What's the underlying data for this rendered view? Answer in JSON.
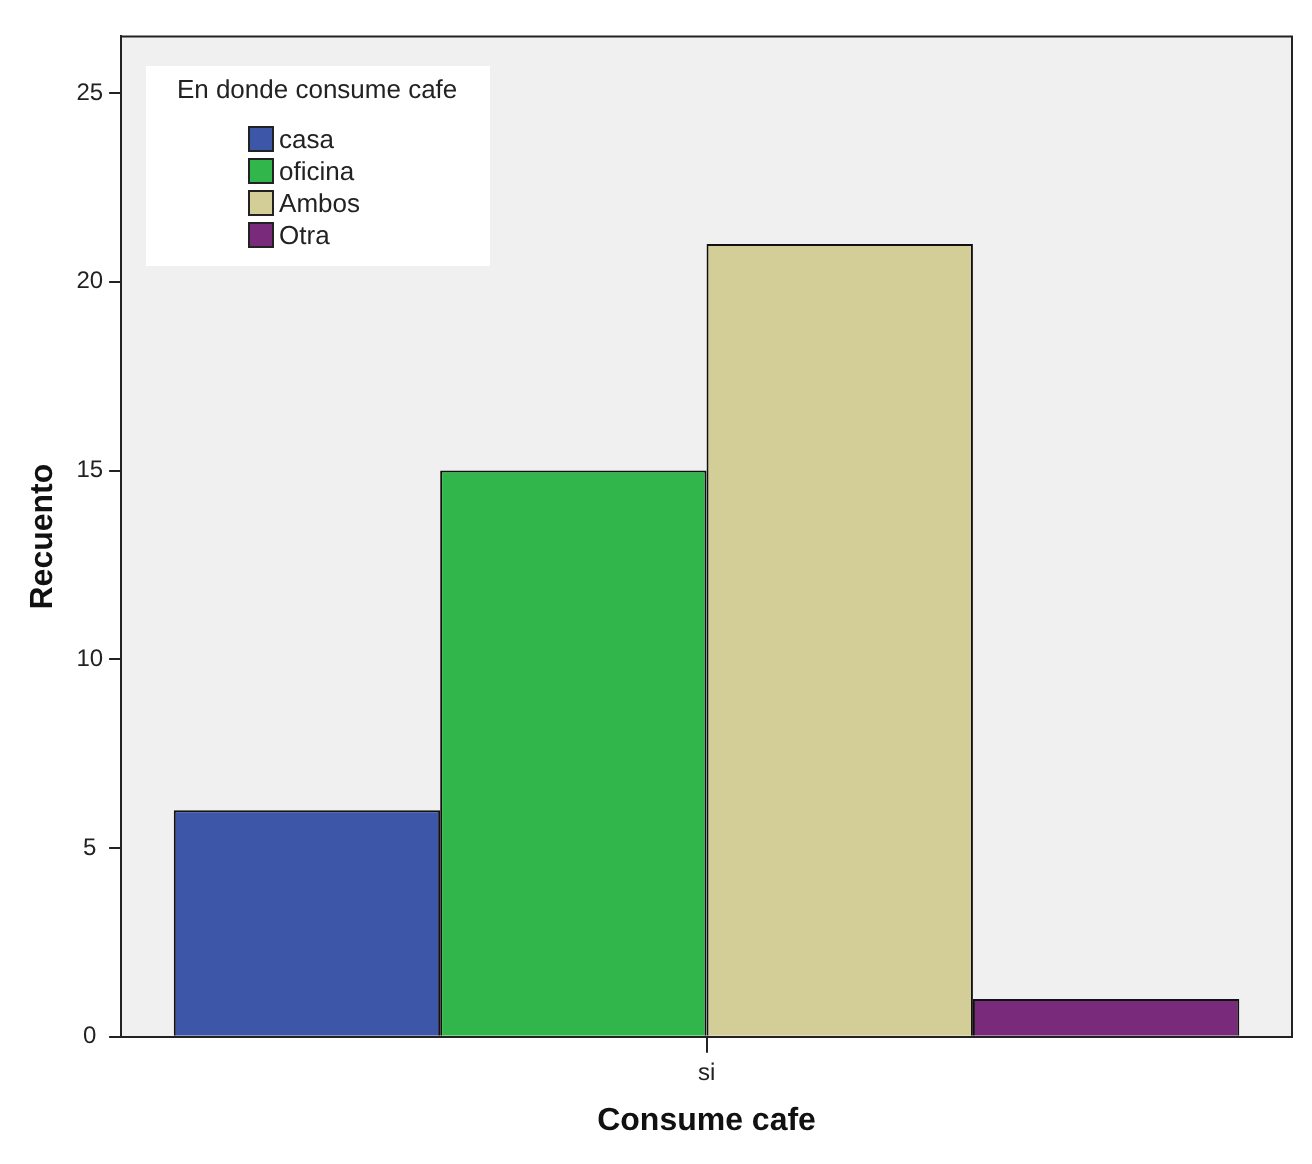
{
  "chart_data": {
    "type": "bar",
    "xlabel": "Consume cafe",
    "ylabel": "Recuento",
    "legend_title": "En donde consume cafe",
    "categories": [
      "si"
    ],
    "series": [
      {
        "name": "casa",
        "color": "#3d56a8",
        "values": [
          6
        ]
      },
      {
        "name": "oficina",
        "color": "#30b64a",
        "values": [
          15
        ]
      },
      {
        "name": "Ambos",
        "color": "#d3ce98",
        "values": [
          21
        ]
      },
      {
        "name": "Otra",
        "color": "#7a2a7a",
        "values": [
          1
        ]
      }
    ],
    "ylim": [
      0,
      26.5
    ],
    "yticks": [
      0,
      5,
      10,
      15,
      20,
      25
    ],
    "grid": false,
    "legend": "top left"
  }
}
